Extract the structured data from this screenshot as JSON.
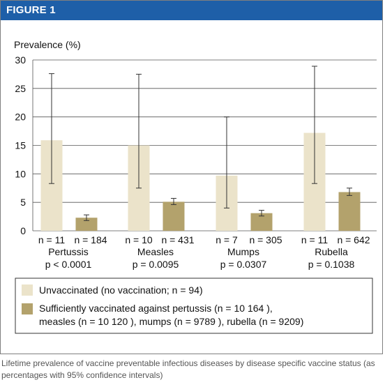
{
  "figure_label": "FIGURE 1",
  "caption": "Lifetime prevalence of vaccine preventable infectious diseases by disease specific vaccine status (as percentages with 95% confidence intervals)",
  "colors": {
    "header": "#1e5fa8",
    "unvaccinated": "#ebe3ca",
    "vaccinated": "#b3a26c"
  },
  "chart_data": {
    "type": "bar",
    "ylabel": "Prevalence (%)",
    "ylim": [
      0,
      30
    ],
    "yticks": [
      0,
      5,
      10,
      15,
      20,
      25,
      30
    ],
    "grid": true,
    "categories": [
      {
        "name": "Pertussis",
        "pvalue": "p < 0.0001",
        "n_unvacc": "n = 11",
        "n_vacc": "n = 184"
      },
      {
        "name": "Measles",
        "pvalue": "p = 0.0095",
        "n_unvacc": "n = 10",
        "n_vacc": "n = 431"
      },
      {
        "name": "Mumps",
        "pvalue": "p = 0.0307",
        "n_unvacc": "n = 7",
        "n_vacc": "n = 305"
      },
      {
        "name": "Rubella",
        "pvalue": "p = 0.1038",
        "n_unvacc": "n = 11",
        "n_vacc": "n = 642"
      }
    ],
    "series": [
      {
        "name": "Unvaccinated (no vaccination; n = 94)",
        "values": [
          15.9,
          15.0,
          9.7,
          17.2
        ],
        "ci_low": [
          8.3,
          7.5,
          4.0,
          8.3
        ],
        "ci_high": [
          27.6,
          27.5,
          20.0,
          28.9
        ]
      },
      {
        "name": "Sufficiently vaccinated against pertussis (n = 10 164 ), measles (n = 10 120 ), mumps (n = 9789 ), rubella (n = 9209)",
        "legend_lines": [
          "Sufficiently vaccinated against pertussis (n = 10 164 ),",
          "measles (n = 10 120 ), mumps (n = 9789 ), rubella (n = 9209)"
        ],
        "values": [
          2.3,
          5.1,
          3.1,
          6.8
        ],
        "ci_low": [
          1.8,
          4.6,
          2.6,
          6.2
        ],
        "ci_high": [
          2.8,
          5.7,
          3.6,
          7.5
        ]
      }
    ],
    "legend_position": "bottom"
  }
}
